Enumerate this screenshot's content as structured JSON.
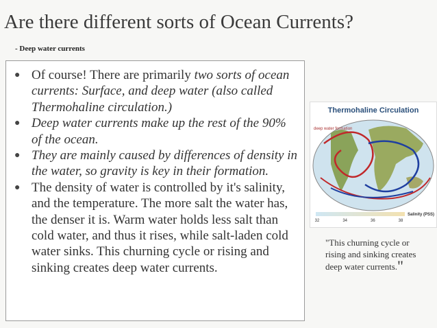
{
  "title": "Are there different sorts of Ocean Currents?",
  "subtitle": "- Deep water currents",
  "bullets": [
    [
      {
        "text": "Of course! There are primarily ",
        "italic": false
      },
      {
        "text": "two sorts of ocean currents: Surface, and deep water (also called Thermohaline circulation.)",
        "italic": true
      }
    ],
    [
      {
        "text": "Deep water currents make up the rest of the 90% of the ocean.",
        "italic": true
      }
    ],
    [
      {
        "text": "They are mainly caused by differences of density in the water, so gravity is key in their formation.",
        "italic": true
      }
    ],
    [
      {
        "text": "The density of water is controlled by it's salinity, and the temperature. The more salt the water has, the denser it is. Warm water holds less salt than cold water, and thus it rises, while salt-laden cold water sinks. This churning cycle or rising and sinking creates deep water currents.",
        "italic": false
      }
    ]
  ],
  "figure": {
    "title": "Thermohaline Circulation",
    "label": "deep water formation",
    "scale_label": "Salinity (PSS)",
    "scale_ticks": [
      "32",
      "34",
      "36",
      "38"
    ]
  },
  "caption": {
    "text": "\"This churning cycle or rising and sinking creates deep water currents.",
    "close": "\""
  }
}
